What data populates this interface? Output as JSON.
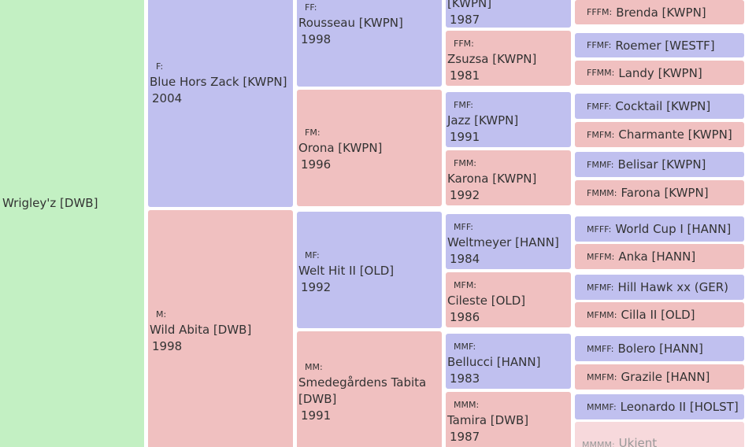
{
  "subject": "Wrigley'z [DWB]",
  "ancestors": [
    {
      "code": "F:",
      "name": "Blue Hors Zack [KWPN]",
      "year": 2004
    },
    {
      "code": "M:",
      "name": "Wild Abita [DWB]",
      "year": 1998
    },
    {
      "code": "FF:",
      "name": "Rousseau [KWPN]",
      "year": 1998
    },
    {
      "code": "FM:",
      "name": "Orona [KWPN]",
      "year": 1996
    },
    {
      "code": "MF:",
      "name": "Welt Hit II [OLD]",
      "year": 1992
    },
    {
      "code": "MM:",
      "name": "Smedegårdens Tabita [DWB]",
      "year": 1991
    },
    {
      "name": "[KWPN]",
      "year": 1987
    },
    {
      "code": "FFM:",
      "name": "Zsuzsa [KWPN]",
      "year": 1981
    },
    {
      "code": "FMF:",
      "name": "Jazz [KWPN]",
      "year": 1991
    },
    {
      "code": "FMM:",
      "name": "Karona [KWPN]",
      "year": 1992
    },
    {
      "code": "MFF:",
      "name": "Weltmeyer [HANN]",
      "year": 1984
    },
    {
      "code": "MFM:",
      "name": "Cileste [OLD]",
      "year": 1986
    },
    {
      "code": "MMF:",
      "name": "Bellucci [HANN]",
      "year": 1983
    },
    {
      "code": "MMM:",
      "name": "Tamira [DWB]",
      "year": 1987
    },
    {
      "code": "FFFM:",
      "name": "Brenda [KWPN]"
    },
    {
      "code": "FFMF:",
      "name": "Roemer [WESTF]"
    },
    {
      "code": "FFMM:",
      "name": "Landy [KWPN]"
    },
    {
      "code": "FMFF:",
      "name": "Cocktail [KWPN]"
    },
    {
      "code": "FMFM:",
      "name": "Charmante [KWPN]"
    },
    {
      "code": "FMMF:",
      "name": "Belisar [KWPN]"
    },
    {
      "code": "FMMM:",
      "name": "Farona [KWPN]"
    },
    {
      "code": "MFFF:",
      "name": "World Cup I [HANN]"
    },
    {
      "code": "MFFM:",
      "name": "Anka [HANN]"
    },
    {
      "code": "MFMF:",
      "name": "Hill Hawk xx (GER)"
    },
    {
      "code": "MFMM:",
      "name": "Cilla II [OLD]"
    },
    {
      "code": "MMFF:",
      "name": "Bolero [HANN]"
    },
    {
      "code": "MMFM:",
      "name": "Grazile [HANN]"
    },
    {
      "code": "MMMF:",
      "name": "Leonardo II [HOLST]"
    },
    {
      "code": "MMMM:",
      "name": "Ukjent"
    }
  ]
}
